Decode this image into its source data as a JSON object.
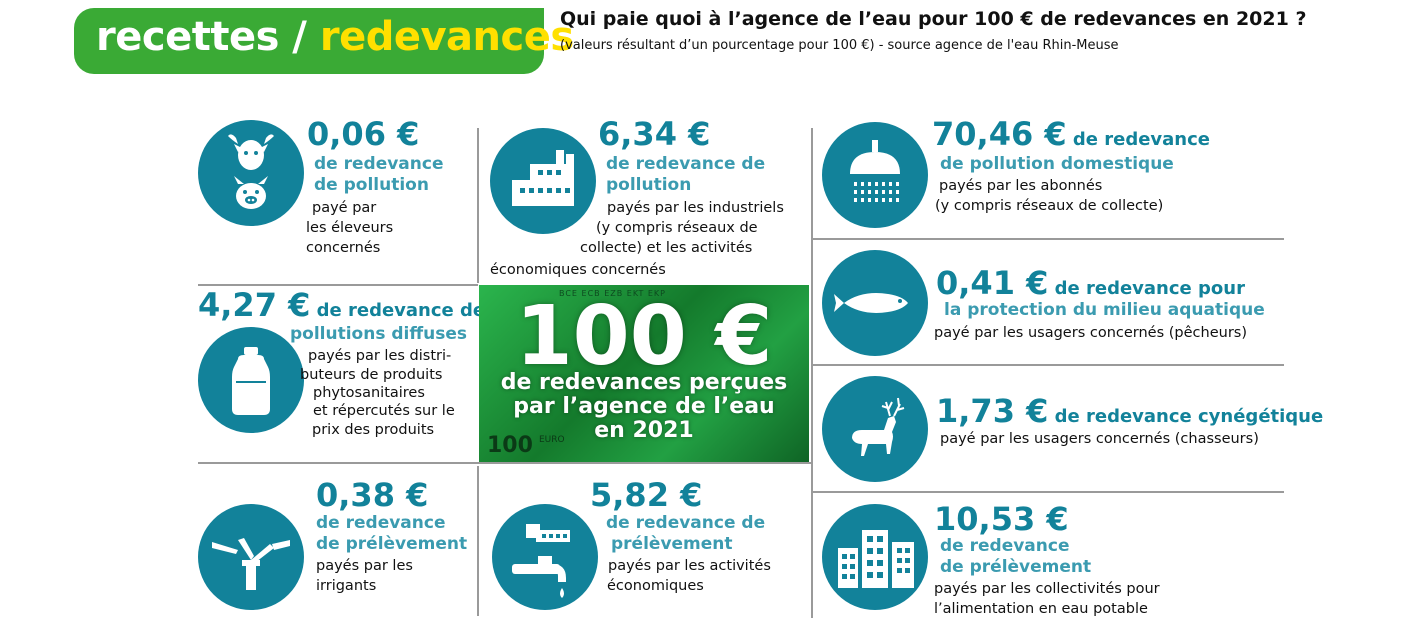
{
  "header": {
    "badge_part1": "recettes / ",
    "badge_part2": "redevances",
    "title": "Qui paie quoi à l’agence de l’eau pour 100 € de redevances en 2021 ?",
    "subtitle": "(valeurs résultant d’un pourcentage pour 100 €) - source agence de l'eau Rhin-Meuse"
  },
  "colors": {
    "teal": "#12829a",
    "teal_light": "#3b9bb0",
    "green": "#3aaa35",
    "yellow": "#ffe000"
  },
  "center": {
    "big": "100 €",
    "line1": "de redevances perçues",
    "line2": "par l’agence de l’eau",
    "line3": "en 2021",
    "note_strip": "BCE ECB EZB EKT EKP",
    "note_corner": "100",
    "note_euro": "EURO"
  },
  "cards": {
    "eleveurs": {
      "icon": "cow-pig-icon",
      "amount": "0,06 €",
      "desc1": "de redevance",
      "desc2": "de pollution",
      "who1": "payé par",
      "who2": "les éleveurs",
      "who3": "concernés"
    },
    "industriels": {
      "icon": "factory-icon",
      "amount": "6,34 €",
      "desc1": "de redevance de",
      "desc2": "pollution",
      "who1": "payés par les industriels",
      "who2": "(y compris réseaux de",
      "who3": "collecte) et les activités",
      "who4": "économiques concernés"
    },
    "domestique": {
      "icon": "shower-icon",
      "amount": "70,46 €",
      "after": " de redevance",
      "desc1": "de pollution domestique",
      "who1": "payés par les abonnés",
      "who2": "(y compris réseaux de collecte)"
    },
    "diffuses": {
      "icon": "bottle-icon",
      "amount": "4,27 €",
      "after": " de redevance de",
      "desc1": "pollutions diffuses",
      "who1": "payés par les distri-",
      "who2": "buteurs de produits",
      "who3": "phytosanitaires",
      "who4": "et répercutés sur le",
      "who5": "prix des produits"
    },
    "aquatique": {
      "icon": "fish-icon",
      "amount": "0,41 €",
      "after": " de redevance pour",
      "desc1": "la protection du milieu aquatique",
      "who1": "payé par les usagers concernés (pêcheurs)"
    },
    "cynegetique": {
      "icon": "deer-icon",
      "amount": "1,73 €",
      "after": " de redevance cynégétique",
      "who1": "payé par les usagers concernés (chasseurs)"
    },
    "irrigants": {
      "icon": "sprinkler-icon",
      "amount": "0,38 €",
      "desc1": "de redevance",
      "desc2": "de prélèvement",
      "who1": "payés par les",
      "who2": "irrigants"
    },
    "economiques": {
      "icon": "tap-icon",
      "amount": "5,82 €",
      "desc1": "de redevance de",
      "desc2": "prélèvement",
      "who1": "payés par les activités",
      "who2": "économiques"
    },
    "collectivites": {
      "icon": "buildings-icon",
      "amount": "10,53 €",
      "desc1": "de redevance",
      "desc2": "de prélèvement",
      "who1": "payés par les collectivités pour",
      "who2": "l’alimentation en eau potable"
    }
  }
}
